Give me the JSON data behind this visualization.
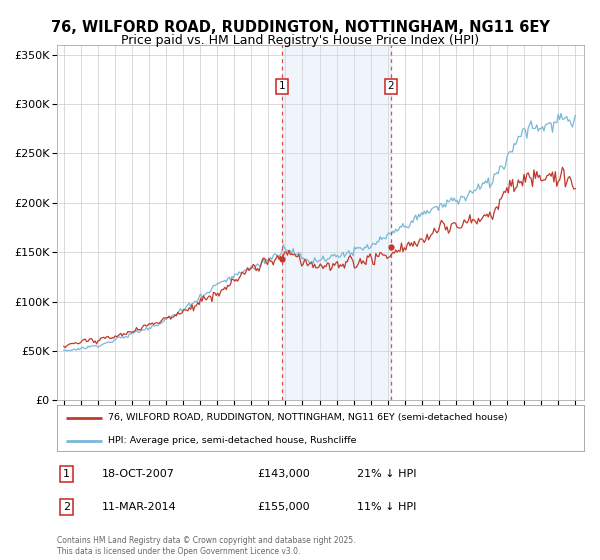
{
  "title_line1": "76, WILFORD ROAD, RUDDINGTON, NOTTINGHAM, NG11 6EY",
  "title_line2": "Price paid vs. HM Land Registry's House Price Index (HPI)",
  "ylim": [
    0,
    360000
  ],
  "yticks": [
    0,
    50000,
    100000,
    150000,
    200000,
    250000,
    300000,
    350000
  ],
  "ytick_labels": [
    "£0",
    "£50K",
    "£100K",
    "£150K",
    "£200K",
    "£250K",
    "£300K",
    "£350K"
  ],
  "hpi_color": "#7ab8d8",
  "property_color": "#c0392b",
  "sale1_date_num": 2007.8,
  "sale1_price": 143000,
  "sale2_date_num": 2014.19,
  "sale2_price": 155000,
  "shade_color": "#cce0f0",
  "vline_color": "#e05050",
  "legend_label_property": "76, WILFORD ROAD, RUDDINGTON, NOTTINGHAM, NG11 6EY (semi-detached house)",
  "legend_label_hpi": "HPI: Average price, semi-detached house, Rushcliffe",
  "table_row1": [
    "1",
    "18-OCT-2007",
    "£143,000",
    "21% ↓ HPI"
  ],
  "table_row2": [
    "2",
    "11-MAR-2014",
    "£155,000",
    "11% ↓ HPI"
  ],
  "copyright_text": "Contains HM Land Registry data © Crown copyright and database right 2025.\nThis data is licensed under the Open Government Licence v3.0.",
  "background_color": "#ffffff",
  "grid_color": "#cccccc"
}
